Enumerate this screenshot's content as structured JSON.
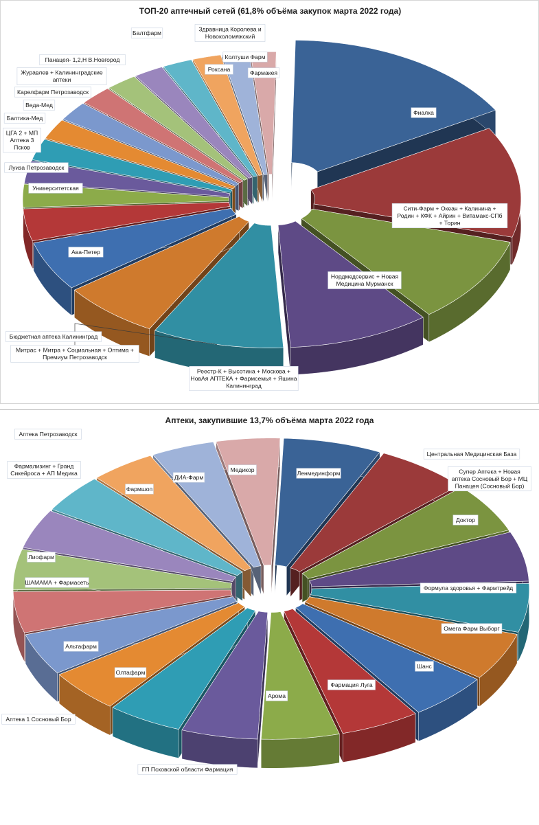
{
  "chart_data": [
    {
      "type": "pie",
      "title": "ТОП-20 аптечный сетей (61,8% объёма закупок марта 2022 года)",
      "series": [
        {
          "label": "Фиалка",
          "value": 16.0,
          "color": "#3a6396"
        },
        {
          "label": "Сити-Фарм + Океан + Калинина + Родин + КФК + Айрин + Витамакс-СПб + Торин",
          "value": 12.5,
          "color": "#9b3a3a"
        },
        {
          "label": "Нордмедсервис + Новая Медицина Мурманск",
          "value": 9.8,
          "color": "#7b9440"
        },
        {
          "label": "Реестр-К + Высотина + Москова + НовАя АПТЕКА + Фармсемья + Яшина Калининград",
          "value": 9.5,
          "color": "#5e4a86"
        },
        {
          "label": "Митрас + Митра + Социальная + Оптима + Премиум Петрозаводск",
          "value": 8.8,
          "color": "#318fa3"
        },
        {
          "label": "Бюджетная аптека Калининград",
          "value": 6.6,
          "color": "#cf7a2d"
        },
        {
          "label": "Ава-Петер",
          "value": 5.6,
          "color": "#3e6fb0"
        },
        {
          "label": "Университетская",
          "value": 3.6,
          "color": "#b43838"
        },
        {
          "label": "Луиза Петрозаводск",
          "value": 2.6,
          "color": "#8cab4a"
        },
        {
          "label": "ЦГА 2 + МП Аптека 3 Псков",
          "value": 2.5,
          "color": "#6a5a9c"
        },
        {
          "label": "Балтика-Мед",
          "value": 2.4,
          "color": "#2f9db4"
        },
        {
          "label": "Веда-Мед",
          "value": 2.3,
          "color": "#e48a32"
        },
        {
          "label": "Карелфарм Петрозаводск",
          "value": 2.2,
          "color": "#7b98cd"
        },
        {
          "label": "Журавлев + Калининградские аптеки",
          "value": 2.2,
          "color": "#cf7474"
        },
        {
          "label": "Панацея- 1,2,Н В.Новгород",
          "value": 2.1,
          "color": "#a4c27a"
        },
        {
          "label": "Балтфарм",
          "value": 2.0,
          "color": "#9a86bd"
        },
        {
          "label": "Здравница Королева и Новоколомяжский",
          "value": 2.0,
          "color": "#5fb6c9"
        },
        {
          "label": "Роксана",
          "value": 1.9,
          "color": "#f0a45f"
        },
        {
          "label": "Колтуши Фарм",
          "value": 1.8,
          "color": "#9fb3d9"
        },
        {
          "label": "Фармакея",
          "value": 1.7,
          "color": "#d9a9a9"
        }
      ]
    },
    {
      "type": "pie",
      "title": "Аптеки, закупившие 13,7% объёма марта 2022 года",
      "series": [
        {
          "label": "Ленмединформ",
          "value": 6.8,
          "color": "#3a6396"
        },
        {
          "label": "Центральная Медицинская База",
          "value": 6.4,
          "color": "#9b3a3a"
        },
        {
          "label": "Супер Аптека + Новая аптека Сосновый Бор + МЦ Панацея (Сосновый Бор)",
          "value": 6.0,
          "color": "#7b9440"
        },
        {
          "label": "Доктор",
          "value": 5.9,
          "color": "#5e4a86"
        },
        {
          "label": "Формула здоровья + Фармтрейд",
          "value": 5.8,
          "color": "#318fa3"
        },
        {
          "label": "Омега Фарм Выборг",
          "value": 5.7,
          "color": "#cf7a2d"
        },
        {
          "label": "Шанс",
          "value": 5.6,
          "color": "#3e6fb0"
        },
        {
          "label": "Фармация Луга",
          "value": 5.5,
          "color": "#b43838"
        },
        {
          "label": "Арома",
          "value": 5.4,
          "color": "#8cab4a"
        },
        {
          "label": "ГП Псковской области Фармация",
          "value": 5.3,
          "color": "#6a5a9c"
        },
        {
          "label": "Олтафарм",
          "value": 5.2,
          "color": "#2f9db4"
        },
        {
          "label": "Альтафарм",
          "value": 5.1,
          "color": "#e48a32"
        },
        {
          "label": "Аптека 1 Сосновый Бор",
          "value": 5.0,
          "color": "#7b98cd"
        },
        {
          "label": "ШАМАМА + Фармасеть",
          "value": 4.9,
          "color": "#cf7474"
        },
        {
          "label": "Лиофарм",
          "value": 4.8,
          "color": "#a4c27a"
        },
        {
          "label": "Фармализинг + Гранд Сикейроса + АП Медика",
          "value": 4.7,
          "color": "#9a86bd"
        },
        {
          "label": "Аптека Петрозаводск",
          "value": 4.6,
          "color": "#5fb6c9"
        },
        {
          "label": "Фармшоп",
          "value": 4.5,
          "color": "#f0a45f"
        },
        {
          "label": "ДИА-Фарм",
          "value": 4.4,
          "color": "#9fb3d9"
        },
        {
          "label": "Медикор",
          "value": 4.4,
          "color": "#d9a9a9"
        }
      ]
    }
  ]
}
